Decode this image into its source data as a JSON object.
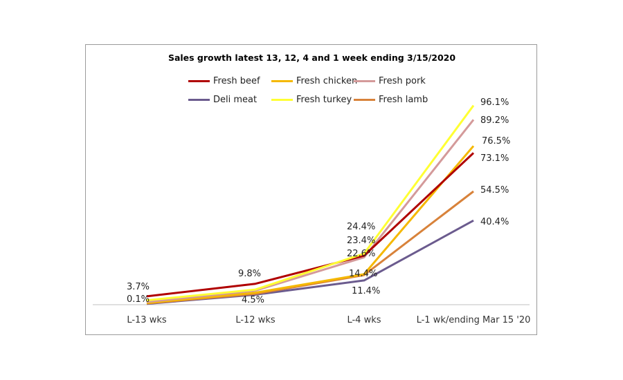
{
  "chart_data": {
    "type": "line",
    "title": "Sales growth latest 13, 12, 4 and 1 week ending 3/15/2020",
    "categories": [
      "L-13 wks",
      "L-12 wks",
      "L-4 wks",
      "L-1 wk/ending Mar 15 '20"
    ],
    "series": [
      {
        "name": "Fresh beef",
        "color": "#b00000",
        "values": [
          3.7,
          9.8,
          23.4,
          73.1
        ]
      },
      {
        "name": "Fresh chicken",
        "color": "#f5b800",
        "values": [
          0.5,
          5.5,
          14.4,
          76.5
        ]
      },
      {
        "name": "Fresh pork",
        "color": "#d49a9a",
        "values": [
          1.0,
          6.5,
          22.6,
          89.2
        ]
      },
      {
        "name": "Deli meat",
        "color": "#6b5b8e",
        "values": [
          0.1,
          4.5,
          11.4,
          40.4
        ]
      },
      {
        "name": "Fresh turkey",
        "color": "#ffff33",
        "values": [
          1.8,
          7.0,
          24.4,
          96.1
        ]
      },
      {
        "name": "Fresh lamb",
        "color": "#d8823a",
        "values": [
          0.3,
          4.9,
          14.0,
          54.5
        ]
      }
    ],
    "data_labels": [
      "3.7%",
      "0.1%",
      "9.8%",
      "4.5%",
      "24.4%",
      "23.4%",
      "22.6%",
      "14.4%",
      "11.4%",
      "96.1%",
      "89.2%",
      "76.5%",
      "73.1%",
      "54.5%",
      "40.4%"
    ],
    "ylim": [
      0,
      100
    ],
    "grid": false,
    "legend_position": "top"
  }
}
